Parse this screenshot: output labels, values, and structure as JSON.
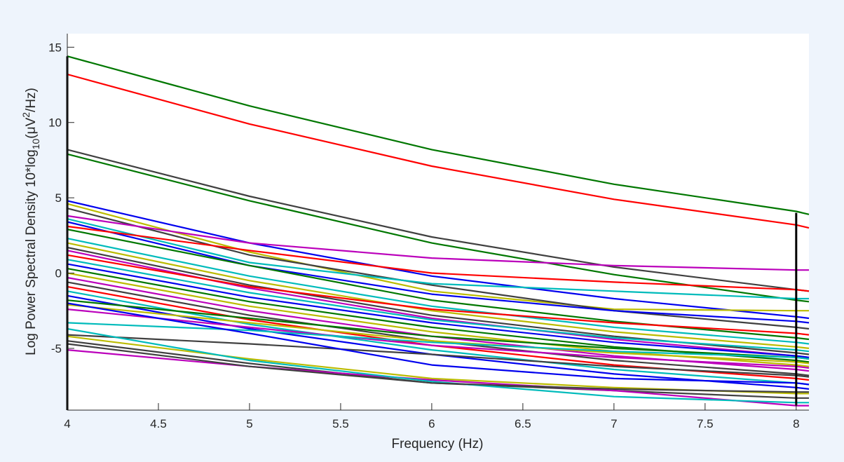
{
  "chart_data": {
    "type": "line",
    "xlabel": "Frequency (Hz)",
    "ylabel": {
      "prefix": "Log Power Spectral Density 10*log",
      "sub": "10",
      "mid": "(μV",
      "sup": "2",
      "suffix": "/Hz)"
    },
    "xlim": [
      4,
      8.07
    ],
    "ylim": [
      -9.1,
      15.9
    ],
    "x": [
      4,
      5,
      6,
      7,
      8,
      8.07
    ],
    "xticks": [
      {
        "value": 4,
        "label": "4"
      },
      {
        "value": 4.5,
        "label": "4.5"
      },
      {
        "value": 5,
        "label": "5"
      },
      {
        "value": 5.5,
        "label": "5.5"
      },
      {
        "value": 6,
        "label": "6"
      },
      {
        "value": 6.5,
        "label": "6.5"
      },
      {
        "value": 7,
        "label": "7"
      },
      {
        "value": 7.5,
        "label": "7.5"
      },
      {
        "value": 8,
        "label": "8"
      }
    ],
    "yticks": [
      {
        "value": 15,
        "label": "15"
      },
      {
        "value": 10,
        "label": "10"
      },
      {
        "value": 5,
        "label": "5"
      },
      {
        "value": 0,
        "label": "0"
      },
      {
        "value": -5,
        "label": "-5"
      }
    ],
    "range_markers": [
      {
        "x": 4,
        "y": [
          -9.1,
          14.4
        ]
      },
      {
        "x": 8,
        "y": [
          -8.8,
          4.0
        ]
      }
    ],
    "grid": false,
    "legend": "none",
    "series": [
      {
        "color": "#007700",
        "values": [
          14.4,
          11.1,
          8.2,
          5.9,
          4.1,
          3.9
        ]
      },
      {
        "color": "#ff0000",
        "values": [
          13.2,
          9.9,
          7.1,
          4.9,
          3.2,
          3.0
        ]
      },
      {
        "color": "#404040",
        "values": [
          8.2,
          5.1,
          2.4,
          0.4,
          -1.1,
          -1.2
        ]
      },
      {
        "color": "#007700",
        "values": [
          7.9,
          4.8,
          2.0,
          -0.1,
          -1.8,
          -1.9
        ]
      },
      {
        "color": "#0000ee",
        "values": [
          4.8,
          2.0,
          -0.2,
          -1.7,
          -2.9,
          -3.0
        ]
      },
      {
        "color": "#bbbb00",
        "values": [
          4.6,
          1.4,
          -1.2,
          -2.4,
          -2.5,
          -2.5
        ]
      },
      {
        "color": "#404040",
        "values": [
          4.3,
          1.2,
          -0.8,
          -2.5,
          -3.6,
          -3.7
        ]
      },
      {
        "color": "#bb00bb",
        "values": [
          3.8,
          2.0,
          1.0,
          0.5,
          0.2,
          0.2
        ]
      },
      {
        "color": "#00bbbb",
        "values": [
          3.6,
          0.7,
          -0.7,
          -1.2,
          -1.7,
          -1.7
        ]
      },
      {
        "color": "#0000ee",
        "values": [
          3.4,
          0.5,
          -1.4,
          -2.5,
          -3.2,
          -3.3
        ]
      },
      {
        "color": "#ff0000",
        "values": [
          3.1,
          1.5,
          0.0,
          -0.6,
          -1.1,
          -1.2
        ]
      },
      {
        "color": "#007700",
        "values": [
          2.9,
          0.5,
          -1.8,
          -3.2,
          -4.3,
          -4.4
        ]
      },
      {
        "color": "#00bbbb",
        "values": [
          2.3,
          -0.2,
          -2.2,
          -3.6,
          -4.6,
          -4.7
        ]
      },
      {
        "color": "#bbbb00",
        "values": [
          2.0,
          -0.5,
          -2.5,
          -3.9,
          -4.9,
          -5.0
        ]
      },
      {
        "color": "#404040",
        "values": [
          1.7,
          -0.8,
          -2.8,
          -4.2,
          -5.3,
          -5.4
        ]
      },
      {
        "color": "#bb00bb",
        "values": [
          1.5,
          -1.0,
          -3.0,
          -4.4,
          -5.5,
          -5.6
        ]
      },
      {
        "color": "#ff0000",
        "values": [
          1.2,
          -0.9,
          -2.4,
          -3.3,
          -4.0,
          -4.1
        ]
      },
      {
        "color": "#00bbbb",
        "values": [
          0.9,
          -1.3,
          -3.1,
          -4.3,
          -5.1,
          -5.2
        ]
      },
      {
        "color": "#0000ee",
        "values": [
          0.6,
          -1.6,
          -3.3,
          -4.6,
          -5.5,
          -5.6
        ]
      },
      {
        "color": "#007700",
        "values": [
          0.3,
          -1.9,
          -3.6,
          -4.9,
          -5.8,
          -5.9
        ]
      },
      {
        "color": "#bbbb00",
        "values": [
          0.0,
          -2.2,
          -3.9,
          -5.2,
          -6.1,
          -6.2
        ]
      },
      {
        "color": "#bb00bb",
        "values": [
          -0.3,
          -2.5,
          -4.2,
          -5.5,
          -6.4,
          -6.5
        ]
      },
      {
        "color": "#404040",
        "values": [
          -0.6,
          -2.8,
          -4.5,
          -5.8,
          -6.7,
          -6.8
        ]
      },
      {
        "color": "#ff0000",
        "values": [
          -0.9,
          -3.1,
          -4.8,
          -6.1,
          -7.0,
          -7.1
        ]
      },
      {
        "color": "#00bbbb",
        "values": [
          -1.2,
          -3.4,
          -5.1,
          -6.4,
          -7.3,
          -7.4
        ]
      },
      {
        "color": "#0000ee",
        "values": [
          -1.5,
          -3.7,
          -5.4,
          -6.7,
          -7.6,
          -7.7
        ]
      },
      {
        "color": "#007700",
        "values": [
          -1.8,
          -3.0,
          -4.2,
          -5.0,
          -5.6,
          -5.7
        ]
      },
      {
        "color": "#bbbb00",
        "values": [
          -2.1,
          -3.3,
          -4.5,
          -5.3,
          -5.9,
          -6.0
        ]
      },
      {
        "color": "#bb00bb",
        "values": [
          -2.4,
          -3.6,
          -4.8,
          -5.6,
          -6.2,
          -6.3
        ]
      },
      {
        "color": "#404040",
        "values": [
          -4.1,
          -4.7,
          -5.4,
          -6.2,
          -6.8,
          -6.9
        ]
      },
      {
        "color": "#00bbbb",
        "values": [
          -3.3,
          -3.8,
          -4.6,
          -5.2,
          -5.6,
          -5.7
        ]
      },
      {
        "color": "#0000ee",
        "values": [
          -2.0,
          -4.0,
          -6.1,
          -7.0,
          -7.3,
          -7.4
        ]
      },
      {
        "color": "#bbbb00",
        "values": [
          -4.2,
          -5.7,
          -7.0,
          -7.6,
          -8.0,
          -8.0
        ]
      },
      {
        "color": "#404040",
        "values": [
          -4.5,
          -6.0,
          -7.3,
          -7.8,
          -8.3,
          -8.3
        ]
      },
      {
        "color": "#bb00bb",
        "values": [
          -5.1,
          -6.2,
          -7.1,
          -7.8,
          -8.8,
          -8.8
        ]
      },
      {
        "color": "#00bbbb",
        "values": [
          -3.7,
          -5.8,
          -7.2,
          -8.2,
          -8.6,
          -8.6
        ]
      },
      {
        "color": "#404040",
        "values": [
          -4.7,
          -6.2,
          -7.3,
          -7.7,
          -7.9,
          -7.9
        ]
      }
    ]
  }
}
